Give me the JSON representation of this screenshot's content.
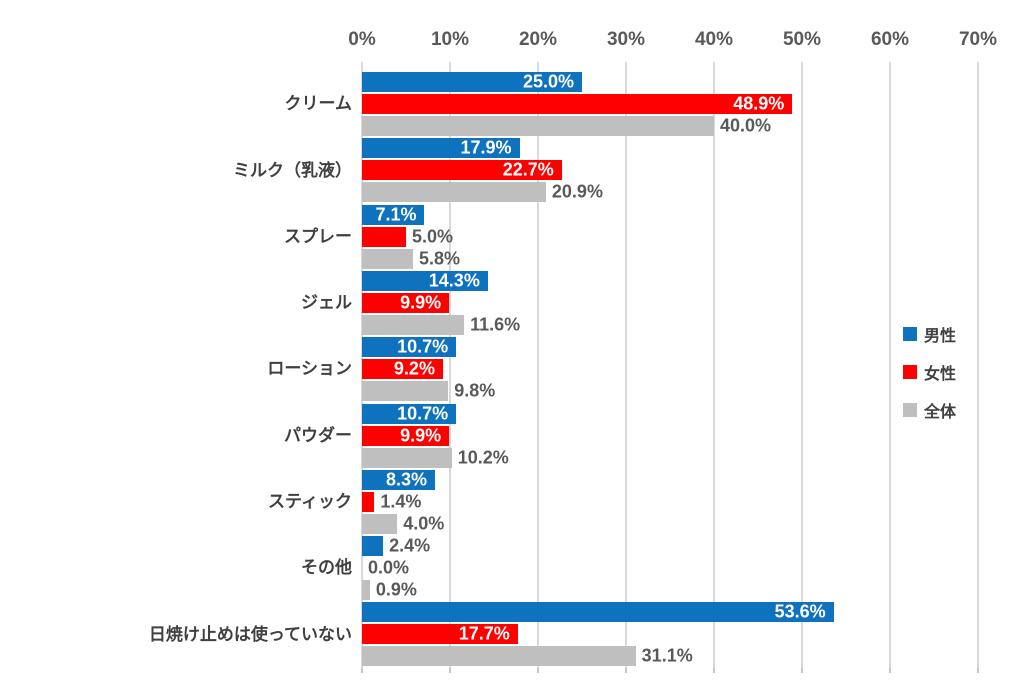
{
  "chart_data": {
    "type": "bar",
    "orientation": "horizontal",
    "title": "",
    "categories": [
      "クリーム",
      "ミルク（乳液）",
      "スプレー",
      "ジェル",
      "ローション",
      "パウダー",
      "スティック",
      "その他",
      "日焼け止めは使っていない"
    ],
    "series": [
      {
        "name": "男性",
        "color": "#0F72BE",
        "values": [
          25.0,
          17.9,
          7.1,
          14.3,
          10.7,
          10.7,
          8.3,
          2.4,
          53.6
        ]
      },
      {
        "name": "女性",
        "color": "#FF0000",
        "values": [
          48.9,
          22.7,
          5.0,
          9.9,
          9.2,
          9.9,
          1.4,
          0.0,
          17.7
        ]
      },
      {
        "name": "全体",
        "color": "#BFBFBF",
        "values": [
          40.0,
          20.9,
          5.8,
          11.6,
          9.8,
          10.2,
          4.0,
          0.9,
          31.1
        ]
      }
    ],
    "x_axis": {
      "ticks": [
        "0%",
        "10%",
        "20%",
        "30%",
        "40%",
        "50%",
        "60%",
        "70%"
      ],
      "min": 0,
      "max": 70,
      "unit": "%"
    },
    "legend": {
      "position": "right-inside",
      "entries": [
        "男性",
        "女性",
        "全体"
      ]
    },
    "grid": true,
    "value_suffix": "%",
    "label_decimals": 1
  },
  "colors": {
    "male": "#0F72BE",
    "female": "#FF0000",
    "total": "#BFBFBF",
    "gridline": "#D9D9D9",
    "axis_text": "#595959",
    "category_text": "#404040",
    "label_inside": "#FFFFFF",
    "label_outside": "#595959",
    "background": "#FFFFFF"
  }
}
